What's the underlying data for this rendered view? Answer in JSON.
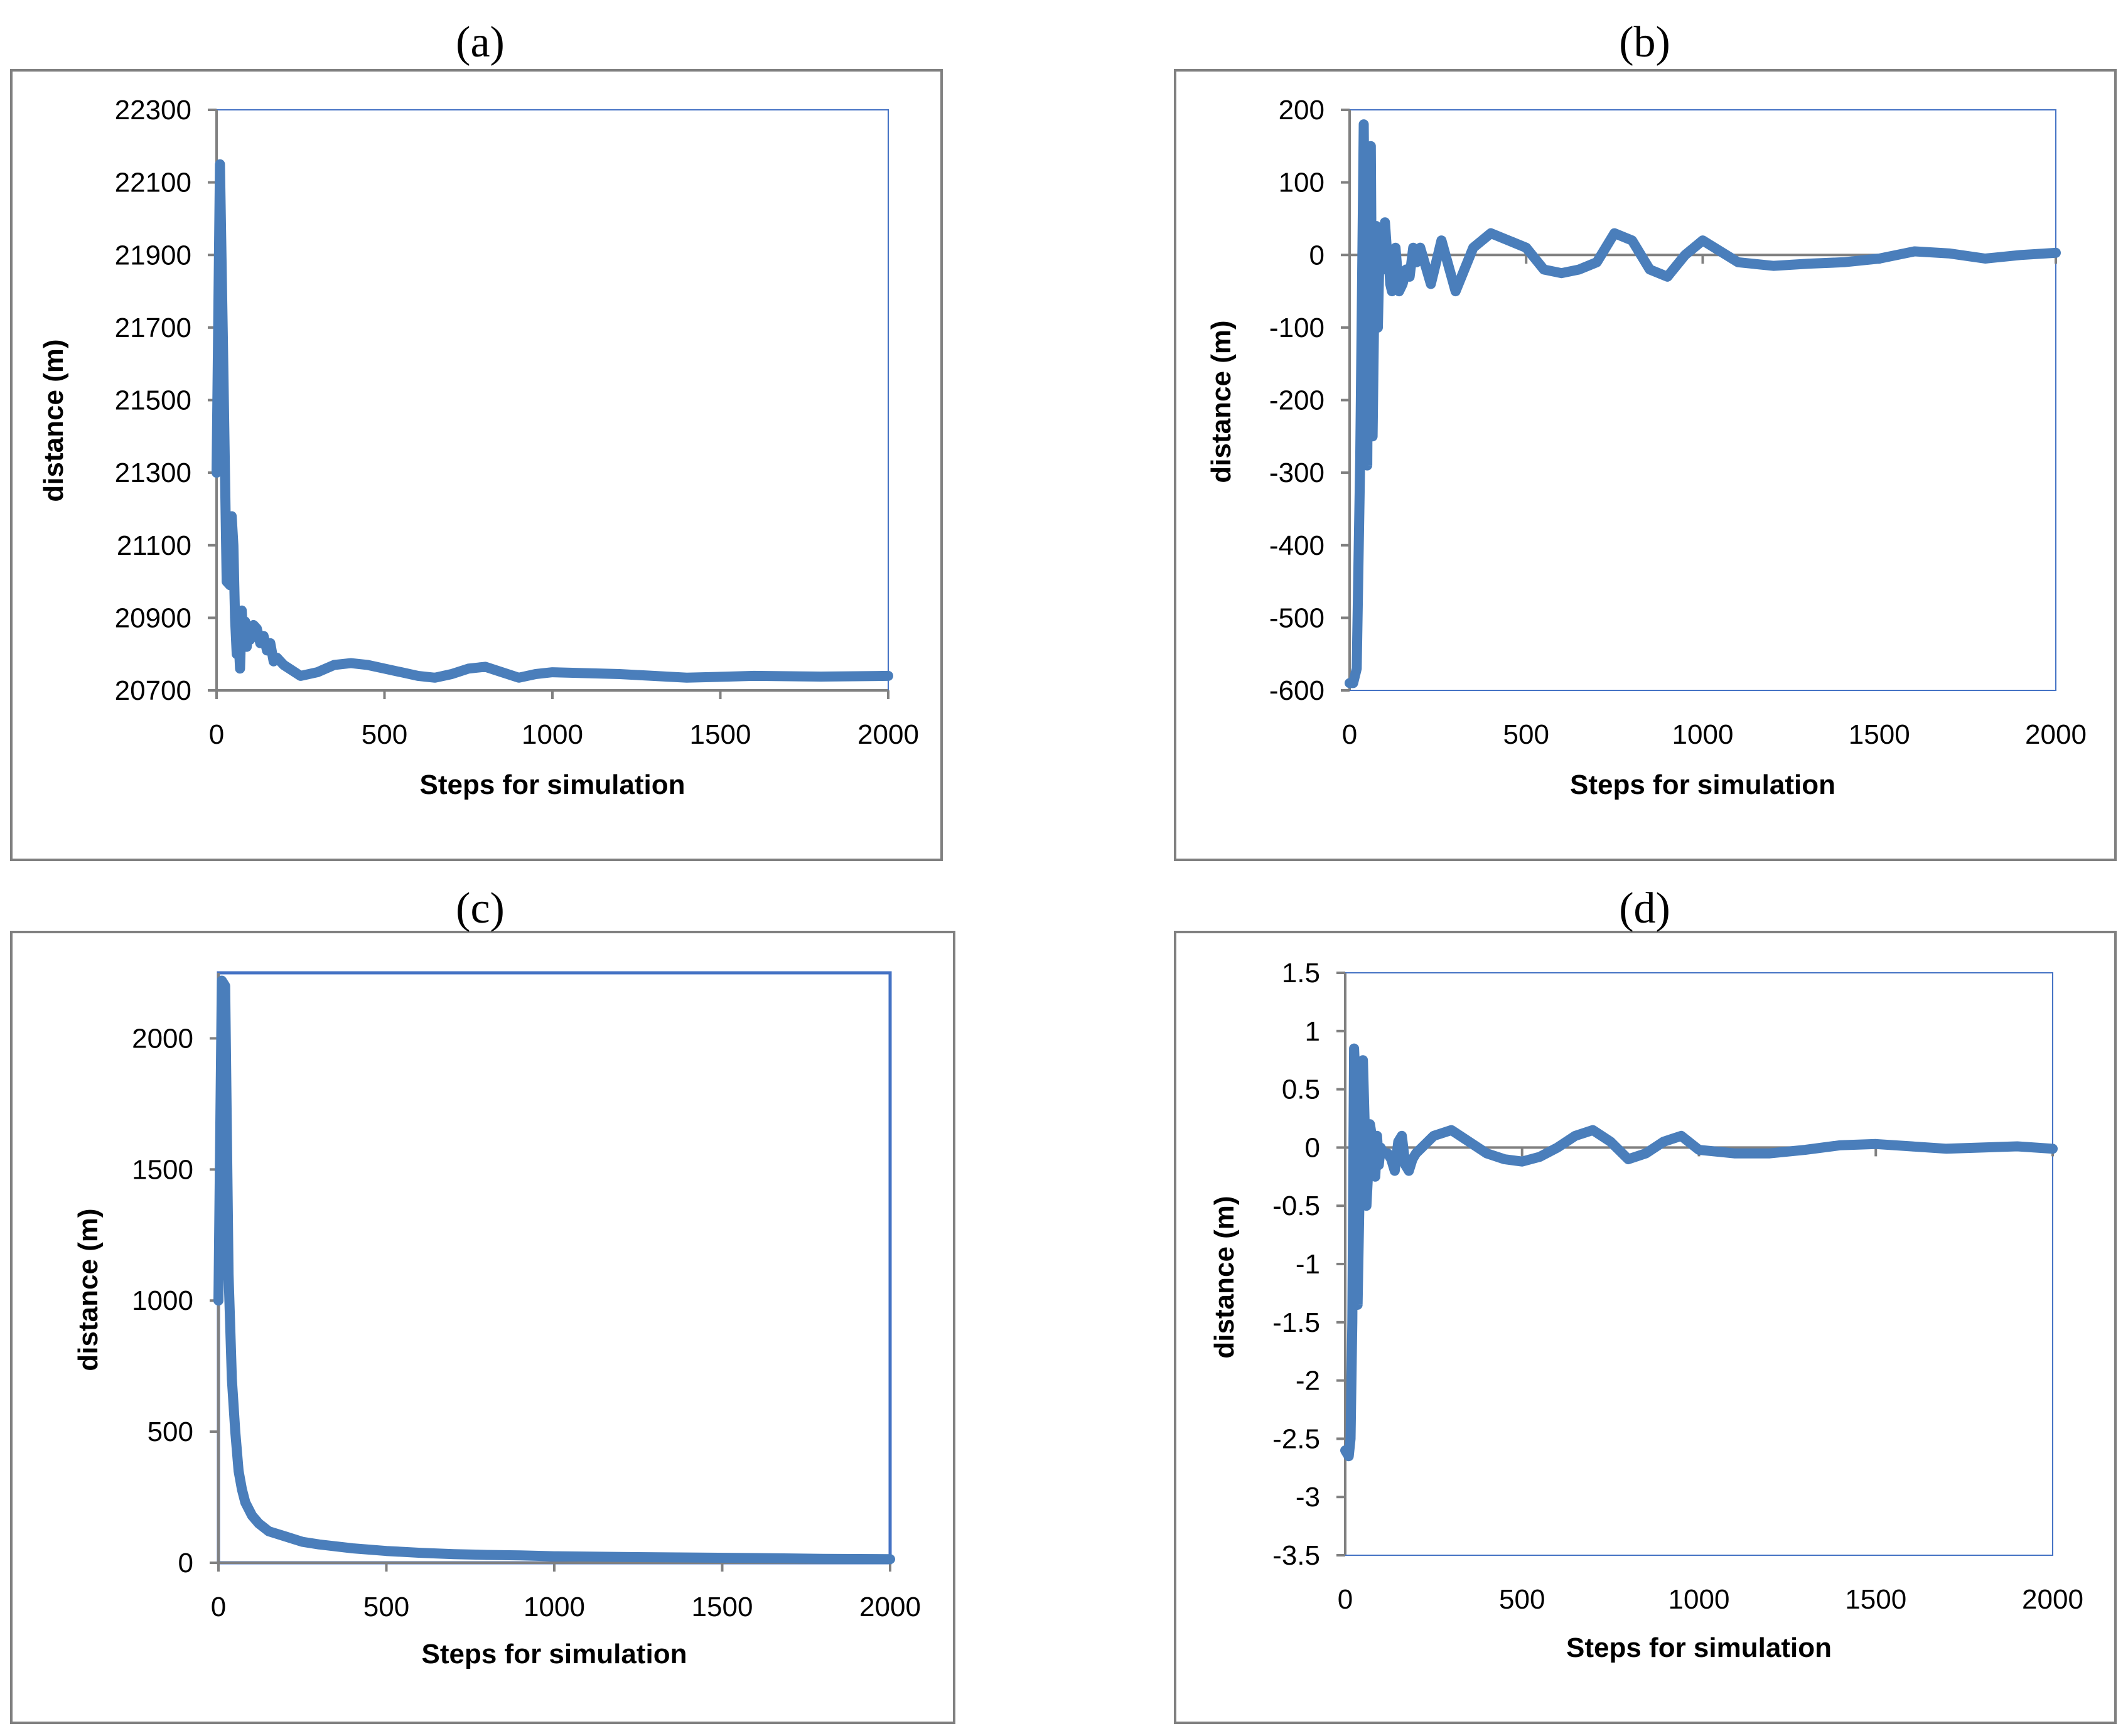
{
  "colors": {
    "series": "#4a7ebb",
    "frame": "#808080",
    "plot_border": "#4472c4",
    "zero_line": "#808080"
  },
  "chart_data": [
    {
      "panel": "(a)",
      "type": "line",
      "title": "",
      "xlabel": "Steps for simulation",
      "ylabel": "distance  (m)",
      "xlim": [
        0,
        2000
      ],
      "ylim": [
        20700,
        22300
      ],
      "xticks": [
        0,
        500,
        1000,
        1500,
        2000
      ],
      "yticks": [
        20700,
        20900,
        21100,
        21300,
        21500,
        21700,
        21900,
        22100,
        22300
      ],
      "zero_line": false,
      "series": [
        {
          "name": "distance",
          "x": [
            0,
            10,
            20,
            30,
            40,
            45,
            50,
            55,
            60,
            65,
            70,
            75,
            80,
            85,
            90,
            95,
            100,
            110,
            120,
            130,
            140,
            150,
            160,
            170,
            180,
            190,
            200,
            250,
            300,
            350,
            400,
            450,
            500,
            550,
            600,
            650,
            700,
            750,
            800,
            850,
            900,
            950,
            1000,
            1200,
            1400,
            1600,
            1800,
            2000
          ],
          "values": [
            21300,
            22150,
            21600,
            21000,
            20990,
            21180,
            21100,
            20900,
            20800,
            20850,
            20760,
            20920,
            20840,
            20890,
            20820,
            20860,
            20840,
            20880,
            20870,
            20830,
            20850,
            20810,
            20830,
            20780,
            20790,
            20780,
            20770,
            20740,
            20750,
            20770,
            20775,
            20770,
            20760,
            20750,
            20740,
            20735,
            20745,
            20760,
            20765,
            20750,
            20735,
            20745,
            20750,
            20745,
            20735,
            20740,
            20738,
            20740
          ]
        }
      ]
    },
    {
      "panel": "(b)",
      "type": "line",
      "title": "",
      "xlabel": "Steps for simulation",
      "ylabel": "distance  (m)",
      "xlim": [
        0,
        2000
      ],
      "ylim": [
        -600,
        200
      ],
      "xticks": [
        0,
        500,
        1000,
        1500,
        2000
      ],
      "yticks": [
        -600,
        -500,
        -400,
        -300,
        -200,
        -100,
        0,
        100,
        200
      ],
      "zero_line": true,
      "series": [
        {
          "name": "distance",
          "x": [
            0,
            10,
            20,
            30,
            40,
            45,
            50,
            55,
            60,
            65,
            70,
            75,
            80,
            85,
            90,
            95,
            100,
            105,
            110,
            115,
            120,
            130,
            140,
            150,
            160,
            170,
            180,
            190,
            200,
            230,
            260,
            300,
            350,
            400,
            450,
            500,
            550,
            600,
            650,
            700,
            750,
            800,
            850,
            900,
            950,
            1000,
            1100,
            1200,
            1300,
            1400,
            1500,
            1600,
            1700,
            1800,
            1900,
            2000
          ],
          "values": [
            -590,
            -590,
            -570,
            -280,
            180,
            -100,
            -290,
            130,
            150,
            -250,
            -60,
            40,
            -100,
            10,
            30,
            -20,
            45,
            10,
            0,
            -40,
            -50,
            10,
            -50,
            -40,
            -20,
            -30,
            10,
            -10,
            10,
            -40,
            20,
            -50,
            10,
            30,
            20,
            10,
            -20,
            -25,
            -20,
            -10,
            30,
            20,
            -20,
            -30,
            0,
            20,
            -10,
            -15,
            -12,
            -10,
            -5,
            5,
            2,
            -5,
            0,
            3
          ]
        }
      ]
    },
    {
      "panel": "(c)",
      "type": "line",
      "title": "",
      "xlabel": "Steps for simulation",
      "ylabel": "distance  (m)",
      "xlim": [
        0,
        2000
      ],
      "ylim": [
        0,
        2250
      ],
      "xticks": [
        0,
        500,
        1000,
        1500,
        2000
      ],
      "yticks": [
        0,
        500,
        1000,
        1500,
        2000
      ],
      "zero_line": false,
      "series": [
        {
          "name": "distance",
          "x": [
            0,
            10,
            20,
            30,
            40,
            50,
            60,
            70,
            80,
            100,
            120,
            150,
            200,
            250,
            300,
            400,
            500,
            600,
            700,
            800,
            900,
            1000,
            1200,
            1400,
            1600,
            1800,
            2000
          ],
          "values": [
            1000,
            2220,
            2200,
            1100,
            700,
            500,
            350,
            280,
            230,
            180,
            150,
            120,
            100,
            80,
            70,
            55,
            45,
            38,
            33,
            30,
            28,
            25,
            22,
            20,
            18,
            15,
            14
          ]
        }
      ]
    },
    {
      "panel": "(d)",
      "type": "line",
      "title": "",
      "xlabel": "Steps for simulation",
      "ylabel": "distance  (m)",
      "xlim": [
        0,
        2000
      ],
      "ylim": [
        -3.5,
        1.5
      ],
      "xticks": [
        0,
        500,
        1000,
        1500,
        2000
      ],
      "yticks": [
        -3.5,
        -3,
        -2.5,
        -2,
        -1.5,
        -1,
        -0.5,
        0,
        0.5,
        1,
        1.5
      ],
      "zero_line": true,
      "series": [
        {
          "name": "distance",
          "x": [
            0,
            10,
            15,
            20,
            25,
            30,
            35,
            40,
            45,
            50,
            55,
            60,
            65,
            70,
            75,
            80,
            85,
            90,
            95,
            100,
            110,
            120,
            130,
            140,
            150,
            160,
            170,
            180,
            190,
            200,
            250,
            300,
            350,
            400,
            450,
            500,
            550,
            600,
            650,
            700,
            750,
            800,
            850,
            900,
            950,
            1000,
            1100,
            1200,
            1300,
            1400,
            1500,
            1600,
            1700,
            1800,
            1900,
            2000
          ],
          "values": [
            -2.6,
            -2.65,
            -2.5,
            -1.5,
            0.85,
            0.5,
            -1.35,
            -0.5,
            0.5,
            0.75,
            0.2,
            -0.5,
            -0.2,
            0.2,
            0.1,
            -0.1,
            -0.25,
            0.1,
            -0.15,
            0,
            -0.05,
            -0.05,
            -0.1,
            -0.2,
            0.05,
            0.1,
            -0.15,
            -0.2,
            -0.1,
            -0.05,
            0.1,
            0.15,
            0.05,
            -0.05,
            -0.1,
            -0.12,
            -0.08,
            0,
            0.1,
            0.15,
            0.05,
            -0.1,
            -0.05,
            0.05,
            0.1,
            -0.02,
            -0.05,
            -0.05,
            -0.02,
            0.02,
            0.03,
            0.01,
            -0.01,
            0,
            0.01,
            -0.01
          ]
        }
      ]
    }
  ]
}
